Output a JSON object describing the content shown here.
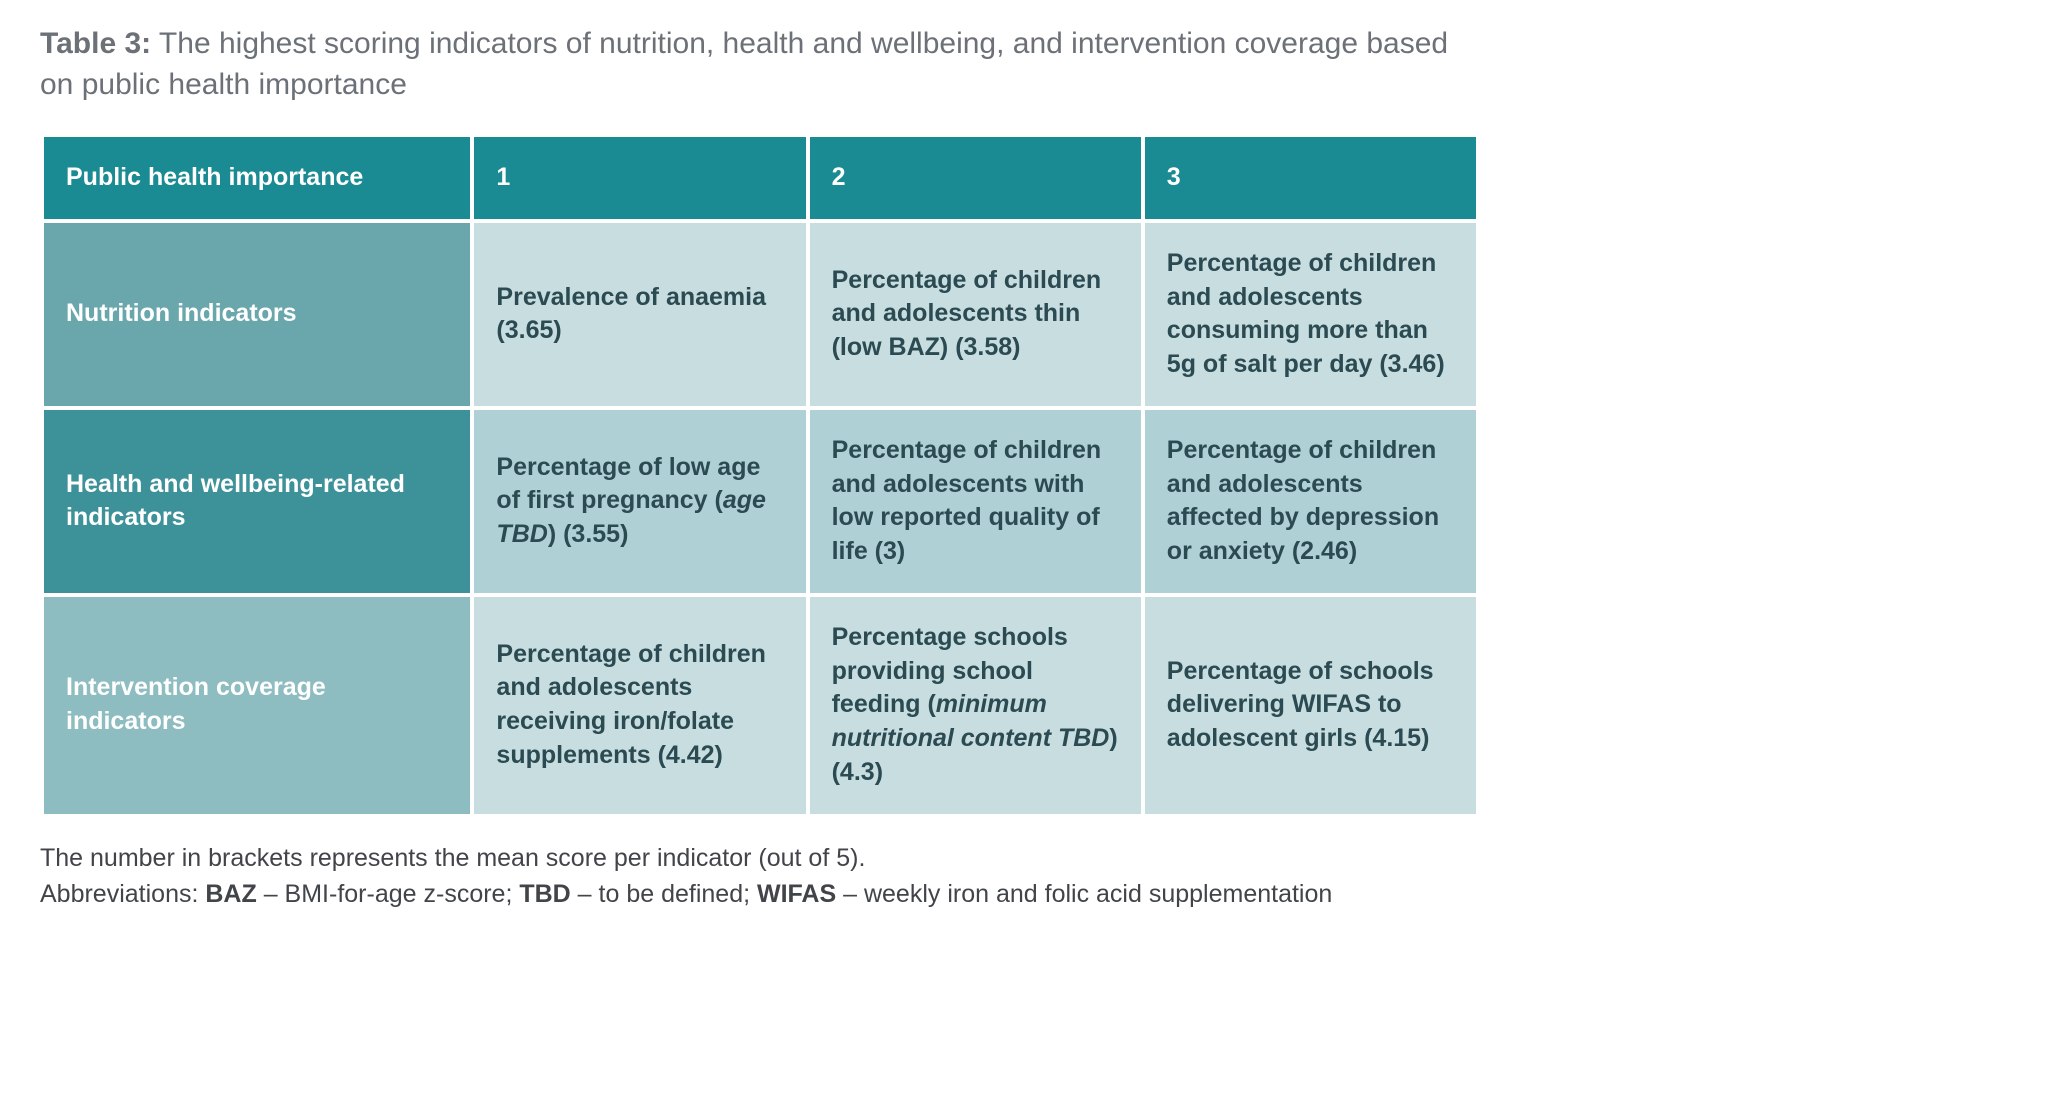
{
  "caption": {
    "label_bold": "Table 3:",
    "text": " The highest scoring indicators of nutrition, health and wellbeing, and intervention coverage based on public health importance"
  },
  "colors": {
    "header_bg": "#1a8a93",
    "header_fg": "#ffffff",
    "rowhdr_fg": "#ffffff",
    "row_label_bg_alt1": "#69a7ad",
    "row_label_bg_alt2": "#3d929a",
    "row_label_bg_alt3": "#8dbcc1",
    "cell_bg_alt1": "#c8dde0",
    "cell_bg_alt2": "#afd1d5",
    "cell_bg_alt3": "#c8dde0",
    "cell_fg": "#2b4a52",
    "caption_fg": "#6c7178",
    "footnote_fg": "#414449"
  },
  "table": {
    "header": [
      "Public health importance",
      "1",
      "2",
      "3"
    ],
    "rows": [
      {
        "label": "Nutrition indicators",
        "label_bg": "#69a7ad",
        "cell_bg": "#c8dde0",
        "cells": [
          {
            "segments": [
              {
                "t": "Prevalence of anaemia (3.65)"
              }
            ]
          },
          {
            "segments": [
              {
                "t": "Percentage of children and adolescents thin (low BAZ) (3.58)"
              }
            ]
          },
          {
            "segments": [
              {
                "t": "Percentage of children and adolescents consuming more than 5g of salt per day (3.46)"
              }
            ]
          }
        ]
      },
      {
        "label": "Health and wellbeing-related indicators",
        "label_bg": "#3d929a",
        "cell_bg": "#afd1d5",
        "cells": [
          {
            "segments": [
              {
                "t": "Percentage of low age of first pregnancy ("
              },
              {
                "t": "age TBD",
                "italic": true
              },
              {
                "t": ") (3.55)"
              }
            ]
          },
          {
            "segments": [
              {
                "t": "Percentage of children and adolescents with low reported quality of life (3)"
              }
            ]
          },
          {
            "segments": [
              {
                "t": "Percentage of children and adolescents affected by depression or anxiety (2.46)"
              }
            ]
          }
        ]
      },
      {
        "label": "Intervention coverage indicators",
        "label_bg": "#8dbcc1",
        "cell_bg": "#c8dde0",
        "cells": [
          {
            "segments": [
              {
                "t": "Percentage of children and adolescents receiving iron/folate supplements (4.42)"
              }
            ]
          },
          {
            "segments": [
              {
                "t": "Percentage schools providing school feeding ("
              },
              {
                "t": "minimum nutritional content TBD",
                "italic": true
              },
              {
                "t": ") (4.3)"
              }
            ]
          },
          {
            "segments": [
              {
                "t": "Percentage of schools delivering WIFAS to adolescent girls (4.15)"
              }
            ]
          }
        ]
      }
    ]
  },
  "footnotes": {
    "line1": "The number in brackets represents the mean score per indicator (out of 5).",
    "line2_prefix": "Abbreviations: ",
    "abbrs": [
      {
        "abbr": "BAZ",
        "def": " – BMI-for-age z-score; "
      },
      {
        "abbr": "TBD",
        "def": " – to be defined; "
      },
      {
        "abbr": "WIFAS",
        "def": " – weekly iron and folic acid supplementation"
      }
    ]
  }
}
